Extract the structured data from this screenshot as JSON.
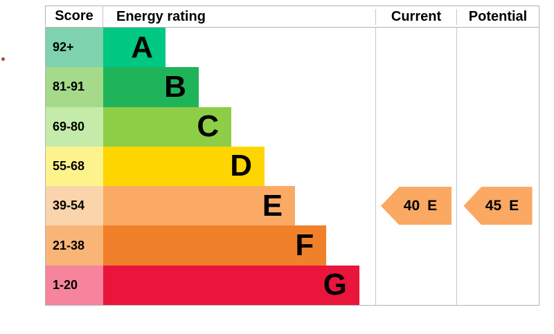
{
  "page": {
    "background": "#ffffff"
  },
  "artifact": {
    "red_dot_color": "#b2423a"
  },
  "header": {
    "score": "Score",
    "energy_rating": "Energy rating",
    "current": "Current",
    "potential": "Potential"
  },
  "chart_data": {
    "type": "bar",
    "title": "Energy rating",
    "categories": [
      "A",
      "B",
      "C",
      "D",
      "E",
      "F",
      "G"
    ],
    "score_ranges": [
      "92+",
      "81-91",
      "69-80",
      "55-68",
      "39-54",
      "21-38",
      "1-20"
    ],
    "bands": [
      {
        "letter": "A",
        "score_range": "92+",
        "bar_color": "#00c781",
        "score_cell_color": "#7fd2ae",
        "bar_width_pct": 22.9
      },
      {
        "letter": "B",
        "score_range": "81-91",
        "bar_color": "#1fb45a",
        "score_cell_color": "#a5da8b",
        "bar_width_pct": 35.1
      },
      {
        "letter": "C",
        "score_range": "69-80",
        "bar_color": "#8dce46",
        "score_cell_color": "#c4eba9",
        "bar_width_pct": 47.1
      },
      {
        "letter": "D",
        "score_range": "55-68",
        "bar_color": "#ffd500",
        "score_cell_color": "#fdf38c",
        "bar_width_pct": 59.3
      },
      {
        "letter": "E",
        "score_range": "39-54",
        "bar_color": "#fbaa65",
        "score_cell_color": "#fad4ab",
        "bar_width_pct": 70.5
      },
      {
        "letter": "F",
        "score_range": "21-38",
        "bar_color": "#f0812a",
        "score_cell_color": "#f8b577",
        "bar_width_pct": 82.0
      },
      {
        "letter": "G",
        "score_range": "1-20",
        "bar_color": "#e9153b",
        "score_cell_color": "#f5849c",
        "bar_width_pct": 94.1
      }
    ],
    "current": {
      "value": "40",
      "band": "E",
      "arrow_color": "#faa862"
    },
    "potential": {
      "value": "45",
      "band": "E",
      "arrow_color": "#faa862"
    }
  }
}
